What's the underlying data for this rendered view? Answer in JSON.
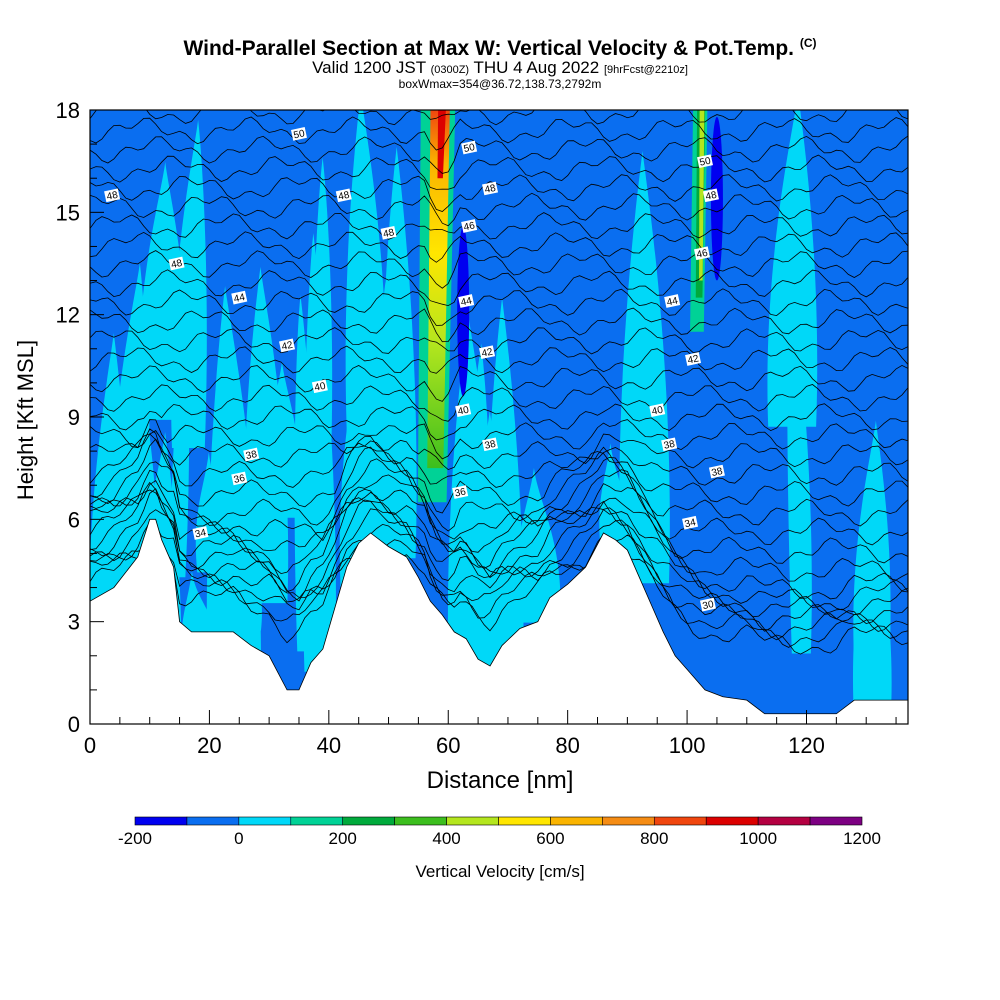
{
  "header": {
    "title": "Wind-Parallel Section at Max W: Vertical Velocity & Pot.Temp.",
    "title_mark": "(C)",
    "valid_prefix": "Valid 1200 JST",
    "valid_utc": "(0300Z)",
    "valid_date": "THU 4 Aug 2022",
    "forecast_info": "[9hrFcst@2210z]",
    "box_info": "boxWmax=354@36.72,138.73,2792m"
  },
  "chart_data": {
    "type": "heatmap",
    "title": "Wind-Parallel Section at Max W: Vertical Velocity & Pot.Temp.",
    "xlabel": "Distance [nm]",
    "ylabel": "Height [Kft MSL]",
    "xlim": [
      0,
      137
    ],
    "ylim": [
      0,
      18
    ],
    "x_ticks": [
      0,
      20,
      40,
      60,
      80,
      100,
      120
    ],
    "y_ticks": [
      0,
      3,
      6,
      9,
      12,
      15,
      18
    ],
    "colorbar": {
      "label": "Vertical Velocity [cm/s]",
      "tick_values": [
        -200,
        0,
        200,
        400,
        600,
        800,
        1000,
        1200
      ],
      "levels": [
        -200,
        -100,
        0,
        100,
        200,
        300,
        400,
        500,
        600,
        700,
        800,
        900,
        1000,
        1100,
        1200
      ],
      "colors": [
        "#0000f0",
        "#0a6ef0",
        "#00d8f8",
        "#00d296",
        "#00aa3c",
        "#3cbe1e",
        "#b4e61e",
        "#ffe600",
        "#fab400",
        "#f58c14",
        "#f0460f",
        "#dc0000",
        "#b40041",
        "#7d0082"
      ]
    },
    "updraft_cores": [
      {
        "x": 59,
        "y_bottom": 6.5,
        "y_top": 18,
        "peak": 1000
      },
      {
        "x": 102.5,
        "y_bottom": 11.5,
        "y_top": 18,
        "peak": 400
      }
    ],
    "downdraft_cores": [
      {
        "x": 62.5,
        "y_bottom": 9.6,
        "y_top": 14.6,
        "min": -200
      },
      {
        "x": 105,
        "y_bottom": 13,
        "y_top": 17.8,
        "min": -200
      }
    ],
    "theta_contour_labels": [
      {
        "text": "48",
        "x": 3.7,
        "y": 15.5
      },
      {
        "text": "48",
        "x": 14.5,
        "y": 13.5
      },
      {
        "text": "50",
        "x": 35,
        "y": 17.3
      },
      {
        "text": "48",
        "x": 42.5,
        "y": 15.5
      },
      {
        "text": "48",
        "x": 50,
        "y": 14.4
      },
      {
        "text": "44",
        "x": 25,
        "y": 12.5
      },
      {
        "text": "42",
        "x": 33,
        "y": 11.1
      },
      {
        "text": "40",
        "x": 38.5,
        "y": 9.9
      },
      {
        "text": "38",
        "x": 27,
        "y": 7.9
      },
      {
        "text": "36",
        "x": 25,
        "y": 7.2
      },
      {
        "text": "34",
        "x": 18.5,
        "y": 5.6
      },
      {
        "text": "50",
        "x": 63.5,
        "y": 16.9
      },
      {
        "text": "48",
        "x": 67,
        "y": 15.7
      },
      {
        "text": "46",
        "x": 63.5,
        "y": 14.6
      },
      {
        "text": "44",
        "x": 63,
        "y": 12.4
      },
      {
        "text": "42",
        "x": 66.5,
        "y": 10.9
      },
      {
        "text": "40",
        "x": 62.5,
        "y": 9.2
      },
      {
        "text": "38",
        "x": 67,
        "y": 8.2
      },
      {
        "text": "36",
        "x": 62,
        "y": 6.8
      },
      {
        "text": "50",
        "x": 103,
        "y": 16.5
      },
      {
        "text": "48",
        "x": 104,
        "y": 15.5
      },
      {
        "text": "46",
        "x": 102.5,
        "y": 13.8
      },
      {
        "text": "44",
        "x": 97.5,
        "y": 12.4
      },
      {
        "text": "42",
        "x": 101,
        "y": 10.7
      },
      {
        "text": "40",
        "x": 95,
        "y": 9.2
      },
      {
        "text": "38",
        "x": 97,
        "y": 8.2
      },
      {
        "text": "38",
        "x": 105,
        "y": 7.4
      },
      {
        "text": "34",
        "x": 100.5,
        "y": 5.9
      },
      {
        "text": "30",
        "x": 103.5,
        "y": 3.5
      }
    ],
    "terrain_height": [
      {
        "x": 0,
        "y": 3.6
      },
      {
        "x": 4,
        "y": 4.0
      },
      {
        "x": 8,
        "y": 4.9
      },
      {
        "x": 10,
        "y": 6.0
      },
      {
        "x": 11,
        "y": 6.0
      },
      {
        "x": 12,
        "y": 5.4
      },
      {
        "x": 13,
        "y": 5.0
      },
      {
        "x": 14,
        "y": 4.6
      },
      {
        "x": 15,
        "y": 3.0
      },
      {
        "x": 17,
        "y": 2.7
      },
      {
        "x": 20,
        "y": 2.7
      },
      {
        "x": 24,
        "y": 2.7
      },
      {
        "x": 27,
        "y": 2.3
      },
      {
        "x": 30,
        "y": 2.0
      },
      {
        "x": 33,
        "y": 1.0
      },
      {
        "x": 35,
        "y": 1.0
      },
      {
        "x": 37,
        "y": 1.8
      },
      {
        "x": 39,
        "y": 2.2
      },
      {
        "x": 41,
        "y": 3.4
      },
      {
        "x": 43,
        "y": 4.6
      },
      {
        "x": 45,
        "y": 5.3
      },
      {
        "x": 47,
        "y": 5.6
      },
      {
        "x": 50,
        "y": 5.2
      },
      {
        "x": 53,
        "y": 4.9
      },
      {
        "x": 55,
        "y": 4.3
      },
      {
        "x": 57,
        "y": 3.6
      },
      {
        "x": 59,
        "y": 3.2
      },
      {
        "x": 61,
        "y": 2.7
      },
      {
        "x": 63,
        "y": 2.5
      },
      {
        "x": 65,
        "y": 1.9
      },
      {
        "x": 67,
        "y": 1.7
      },
      {
        "x": 69,
        "y": 2.3
      },
      {
        "x": 72,
        "y": 2.8
      },
      {
        "x": 75,
        "y": 3.0
      },
      {
        "x": 77,
        "y": 3.7
      },
      {
        "x": 80,
        "y": 4.1
      },
      {
        "x": 83,
        "y": 4.6
      },
      {
        "x": 86,
        "y": 5.6
      },
      {
        "x": 88,
        "y": 5.4
      },
      {
        "x": 90,
        "y": 5.1
      },
      {
        "x": 92,
        "y": 4.3
      },
      {
        "x": 94,
        "y": 3.5
      },
      {
        "x": 96,
        "y": 2.7
      },
      {
        "x": 98,
        "y": 2.0
      },
      {
        "x": 100,
        "y": 1.6
      },
      {
        "x": 103,
        "y": 1.0
      },
      {
        "x": 106,
        "y": 0.8
      },
      {
        "x": 110,
        "y": 0.7
      },
      {
        "x": 113,
        "y": 0.3
      },
      {
        "x": 120,
        "y": 0.3
      },
      {
        "x": 125,
        "y": 0.3
      },
      {
        "x": 128,
        "y": 0.7
      },
      {
        "x": 137,
        "y": 0.7
      }
    ]
  }
}
